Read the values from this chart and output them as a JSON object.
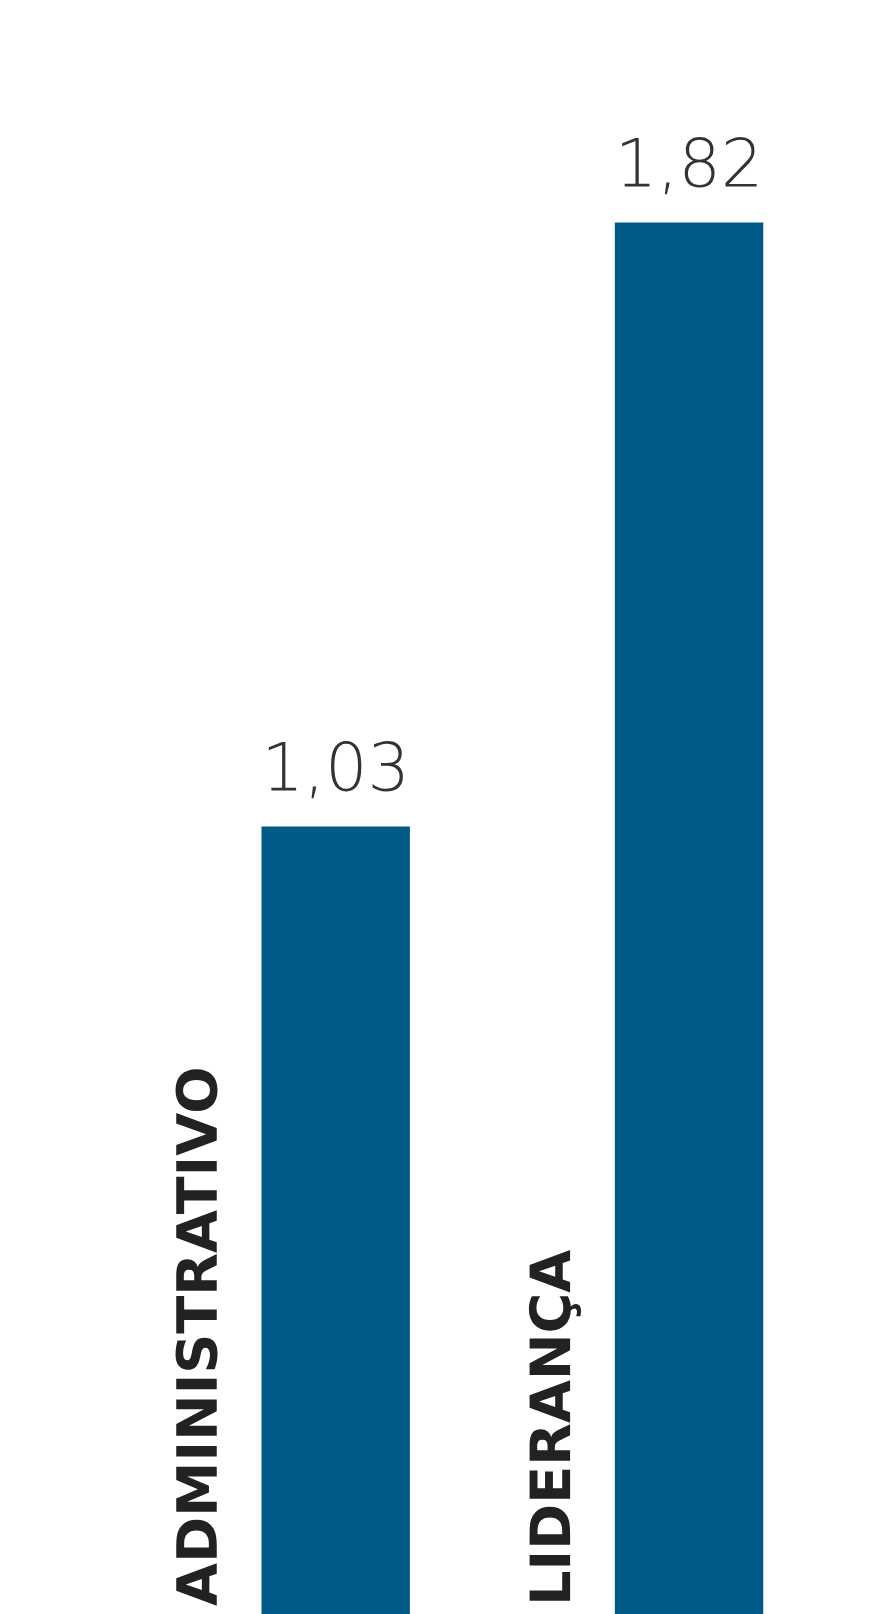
{
  "chart_data": {
    "type": "bar",
    "categories": [
      "ADMINISTRATIVO",
      "LIDERANÇA"
    ],
    "values": [
      1.03,
      1.82
    ],
    "value_labels": [
      "1,03",
      "1,82"
    ],
    "color": "#005a87"
  }
}
